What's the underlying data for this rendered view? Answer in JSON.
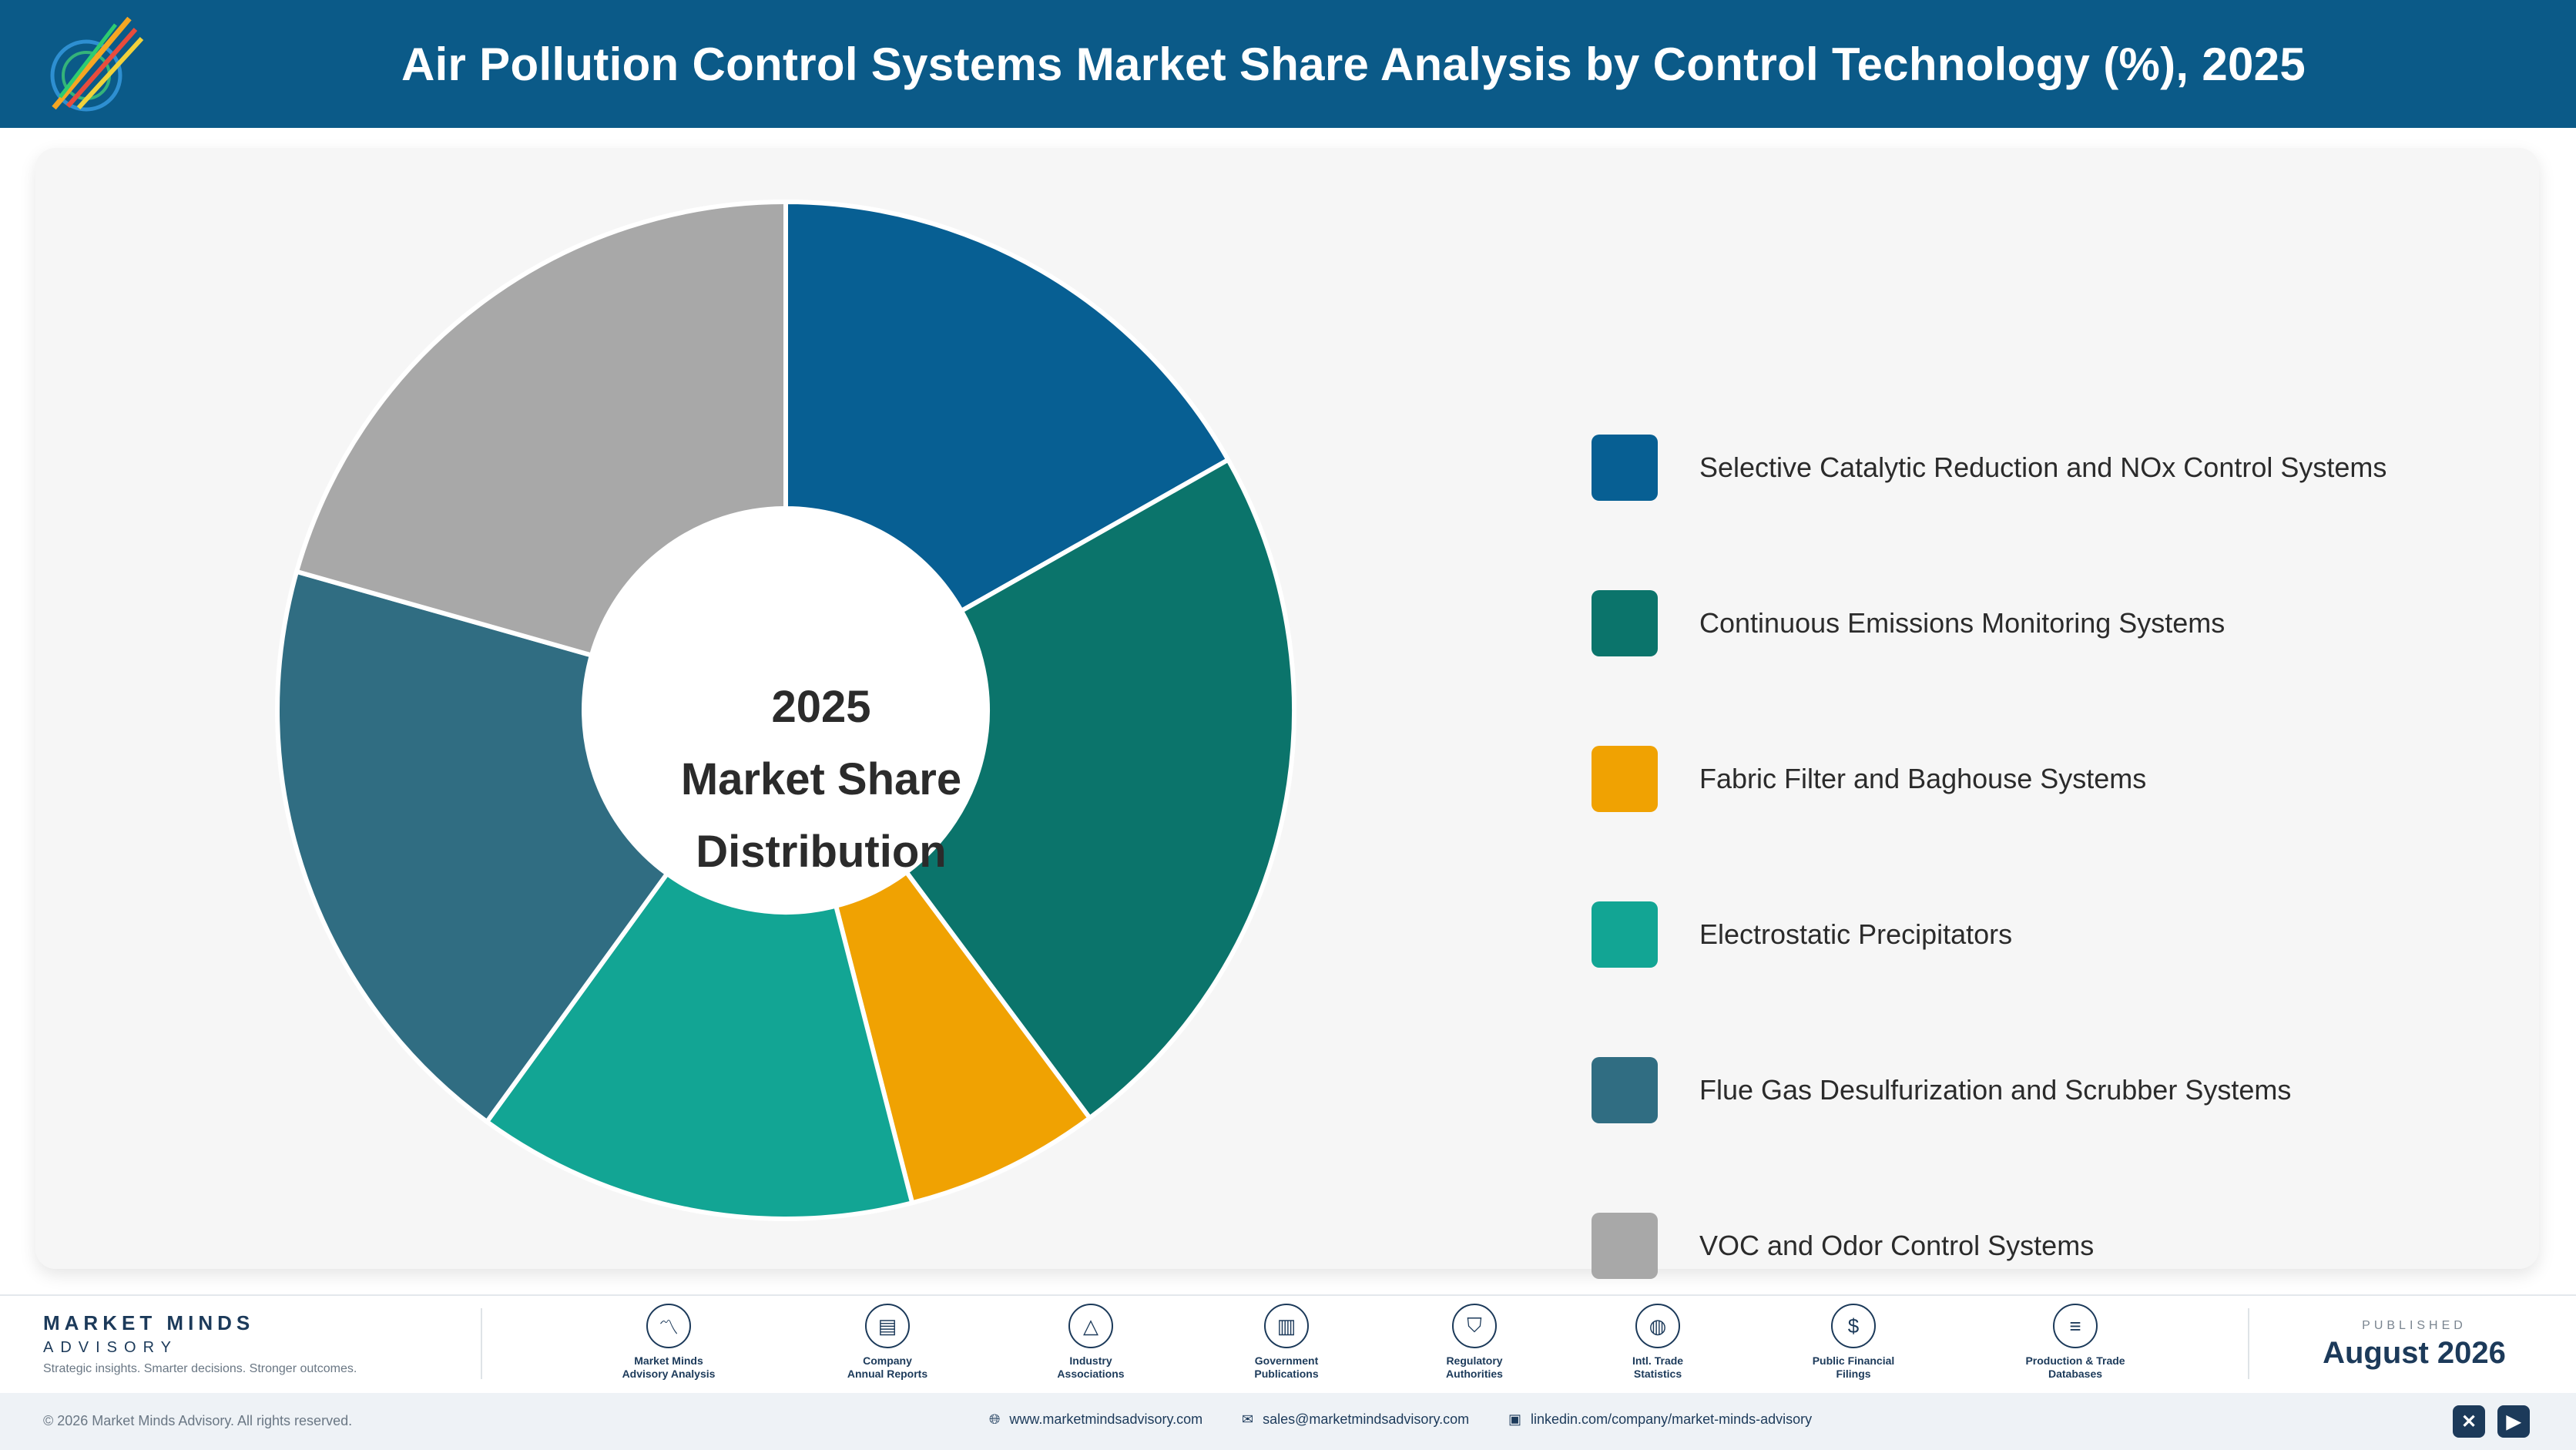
{
  "header": {
    "title": "Air Pollution Control Systems Market Share Analysis by Control Technology (%), 2025"
  },
  "chart_data": {
    "type": "pie",
    "variant": "donut",
    "title": "Air Pollution Control Systems Market Share Analysis by Control Technology (%), 2025",
    "center_label": [
      "2025",
      "Market Share",
      "Distribution"
    ],
    "categories": [
      "Selective Catalytic Reduction and NOx Control Systems",
      "Continuous Emissions Monitoring Systems",
      "Fabric Filter and Baghouse Systems",
      "Electrostatic Precipitators",
      "Flue Gas Desulfurization and Scrubber Systems",
      "VOC and Odor Control Systems"
    ],
    "values": [
      16.8,
      23.0,
      6.2,
      14.0,
      19.4,
      20.6
    ],
    "colors": [
      "#075f93",
      "#0b746b",
      "#f0a202",
      "#12a594",
      "#306d82",
      "#a8a8a8"
    ],
    "start_angle_deg": 0,
    "direction": "clockwise",
    "legend_position": "right"
  },
  "footer": {
    "brand_name": "MARKET MINDS",
    "brand_sub": "ADVISORY",
    "tagline": "Strategic insights. Smarter decisions. Stronger outcomes.",
    "sources": [
      {
        "line1": "Market Minds",
        "line2": "Advisory Analysis",
        "icon": "chart-line-icon"
      },
      {
        "line1": "Company",
        "line2": "Annual Reports",
        "icon": "document-icon"
      },
      {
        "line1": "Industry",
        "line2": "Associations",
        "icon": "network-icon"
      },
      {
        "line1": "Government",
        "line2": "Publications",
        "icon": "building-icon"
      },
      {
        "line1": "Regulatory",
        "line2": "Authorities",
        "icon": "shield-icon"
      },
      {
        "line1": "Intl. Trade",
        "line2": "Statistics",
        "icon": "globe-icon"
      },
      {
        "line1": "Public Financial",
        "line2": "Filings",
        "icon": "coin-icon"
      },
      {
        "line1": "Production & Trade",
        "line2": "Databases",
        "icon": "database-icon"
      }
    ],
    "published_label": "PUBLISHED",
    "published_date": "August 2026",
    "copyright": "© 2026 Market Minds Advisory. All rights reserved.",
    "website": "www.marketmindsadvisory.com",
    "email": "sales@marketmindsadvisory.com",
    "linkedin": "linkedin.com/company/market-minds-advisory"
  }
}
